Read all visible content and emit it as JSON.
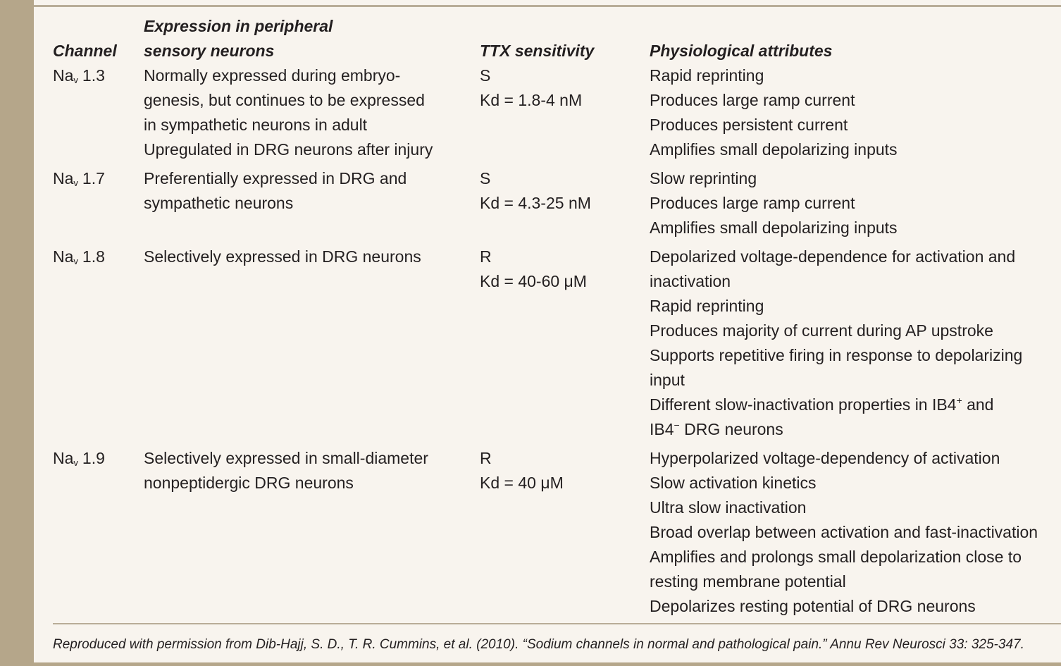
{
  "table": {
    "header": {
      "channel": "Channel",
      "expression": [
        "Expression in peripheral",
        "sensory neurons"
      ],
      "ttx": "TTX sensitivity",
      "attributes": "Physiological attributes"
    },
    "rows": [
      {
        "channel": {
          "base": "Na",
          "sub": "v",
          "number": "1.3"
        },
        "expression": [
          "Normally expressed during embryo-",
          "genesis, but continues to be expressed",
          "in sympathetic neurons in adult",
          "Upregulated in DRG neurons after injury"
        ],
        "ttx": [
          "S",
          "Kd = 1.8-4 nM"
        ],
        "attributes": [
          "Rapid reprinting",
          "Produces large ramp current",
          "Produces persistent current",
          "Amplifies small depolarizing inputs"
        ]
      },
      {
        "channel": {
          "base": "Na",
          "sub": "v",
          "number": "1.7"
        },
        "expression": [
          "Preferentially expressed in DRG and",
          "sympathetic neurons"
        ],
        "ttx": [
          "S",
          "Kd = 4.3-25 nM"
        ],
        "attributes": [
          "Slow reprinting",
          "Produces large ramp current",
          "Amplifies small depolarizing inputs"
        ]
      },
      {
        "channel": {
          "base": "Na",
          "sub": "v",
          "number": "1.8"
        },
        "expression": [
          "Selectively expressed in DRG neurons"
        ],
        "ttx": [
          "R",
          "Kd = 40-60 μM"
        ],
        "attributes": [
          "Depolarized voltage-dependence for activation and",
          "inactivation",
          "Rapid reprinting",
          "Produces majority of current during AP upstroke",
          "Supports repetitive firing in response to depolarizing",
          "input",
          {
            "before": "Different slow-inactivation properties in IB4",
            "sup": "+",
            "after": " and"
          },
          {
            "before": "IB4",
            "sup": "−",
            "after": " DRG neurons"
          }
        ]
      },
      {
        "channel": {
          "base": "Na",
          "sub": "v",
          "number": "1.9"
        },
        "expression": [
          "Selectively expressed in small-diameter",
          "nonpeptidergic DRG neurons"
        ],
        "ttx": [
          "R",
          "Kd = 40 μM"
        ],
        "attributes": [
          "Hyperpolarized voltage-dependency of activation",
          "Slow activation kinetics",
          "Ultra slow inactivation",
          "Broad overlap between activation and fast-inactivation",
          "Amplifies and prolongs small depolarization close to",
          "resting membrane potential",
          "Depolarizes resting potential of DRG neurons"
        ]
      }
    ]
  },
  "footnote": "Reproduced with permission from Dib-Hajj, S. D., T. R. Cummins, et al. (2010). “Sodium channels in normal and pathological pain.” Annu Rev Neurosci 33: 325-347."
}
